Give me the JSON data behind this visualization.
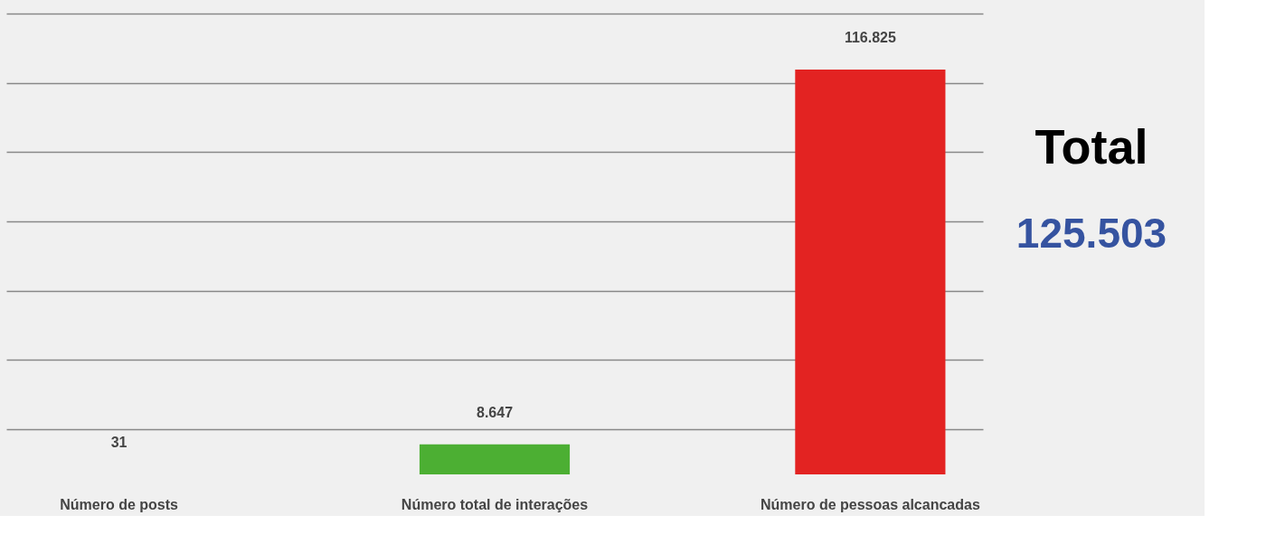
{
  "chart_data": {
    "type": "bar",
    "categories": [
      "Número de posts",
      "Número total de interações",
      "Número de pessoas alcancadas"
    ],
    "values": [
      31,
      8647,
      116825
    ],
    "colors": [
      "#f5d327",
      "#4caf33",
      "#e32322"
    ],
    "value_labels": [
      "31",
      "8.647",
      "116.825"
    ],
    "ylim": [
      0,
      133000
    ],
    "yticks": [
      {
        "value": 13000,
        "label": null
      },
      {
        "value": 33000,
        "label": null
      },
      {
        "value": 53000,
        "label": null
      },
      {
        "value": 73000,
        "label": null
      },
      {
        "value": 93000,
        "label": null
      },
      {
        "value": 113000,
        "label": null
      },
      {
        "value": 133000,
        "label": null
      }
    ],
    "grid": "y",
    "annotations": [
      "Total",
      "125.503"
    ]
  }
}
